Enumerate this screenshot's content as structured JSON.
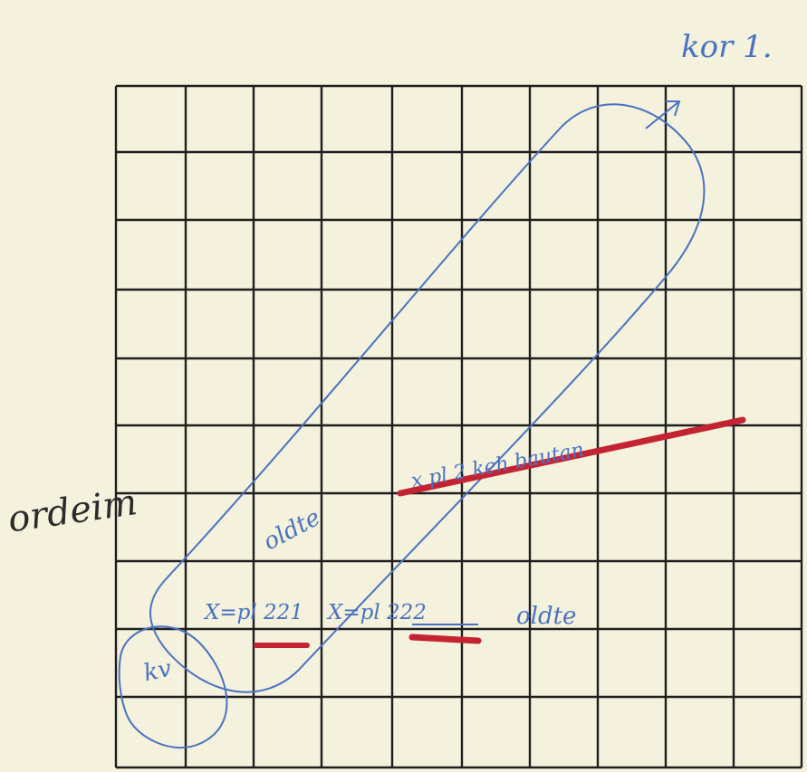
{
  "sheet": {
    "corner_label": "kor 1.",
    "side_label": "ordeim",
    "diagonal_note": "oldte",
    "right_note": "oldte",
    "x_note_1": "X=pl 221",
    "x_note_2": "X=pl 222",
    "corner_box_note": "kv",
    "red_line_note": "x pl 2 keh bautan"
  },
  "colors": {
    "paper": "#f4f1dc",
    "grid": "#1e1e1e",
    "blue_ink": "#4a72c2",
    "red_ink": "#c42332"
  }
}
